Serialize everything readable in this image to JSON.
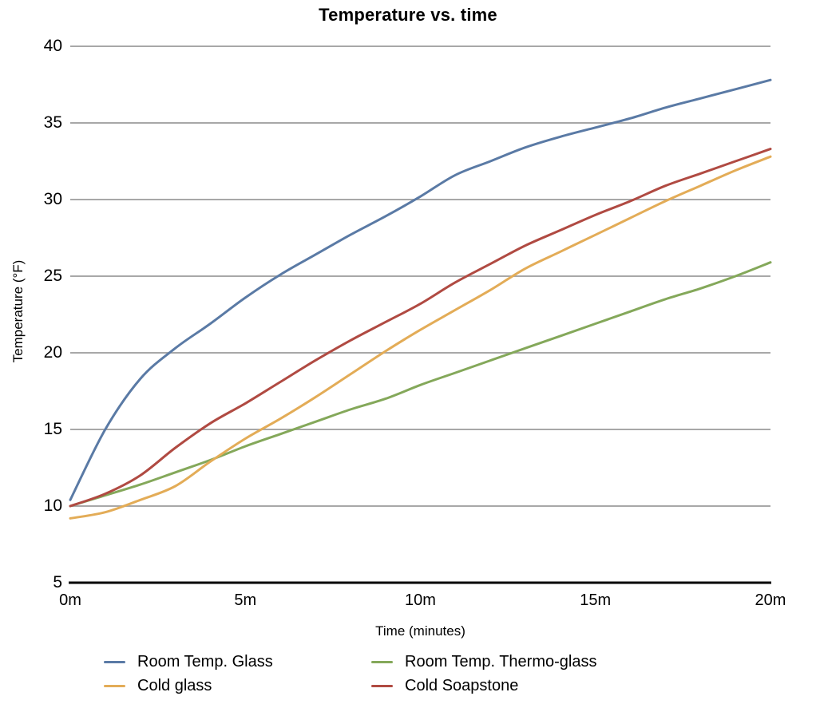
{
  "title": "Temperature vs. time",
  "axes": {
    "x": {
      "label": "Time (minutes)",
      "min": 0,
      "max": 20,
      "ticks": [
        {
          "value": 0,
          "label": "0m"
        },
        {
          "value": 5,
          "label": "5m"
        },
        {
          "value": 10,
          "label": "10m"
        },
        {
          "value": 15,
          "label": "15m"
        },
        {
          "value": 20,
          "label": "20m"
        }
      ]
    },
    "y": {
      "label": "Temperature (°F)",
      "min": 5,
      "max": 40,
      "ticks": [
        {
          "value": 40,
          "label": "40"
        },
        {
          "value": 35,
          "label": "35"
        },
        {
          "value": 30,
          "label": "30"
        },
        {
          "value": 25,
          "label": "25"
        },
        {
          "value": 20,
          "label": "20"
        },
        {
          "value": 15,
          "label": "15"
        },
        {
          "value": 10,
          "label": "10"
        },
        {
          "value": 5,
          "label": "5"
        }
      ]
    }
  },
  "chart_data": {
    "type": "line",
    "title": "Temperature vs. time",
    "xlabel": "Time (minutes)",
    "ylabel": "Temperature (°F)",
    "xlim": [
      0,
      20
    ],
    "ylim": [
      5,
      40
    ],
    "grid": "horizontal",
    "gridline_color": "#a8a8a8",
    "axis_color": "#000000",
    "legend_position": "bottom",
    "x_minutes": [
      0,
      1,
      2,
      3,
      4,
      5,
      6,
      7,
      8,
      9,
      10,
      11,
      12,
      13,
      14,
      15,
      16,
      17,
      18,
      19,
      20
    ],
    "series": [
      {
        "name": "Room Temp. Glass",
        "color": "#5a7aa5",
        "values": [
          10.4,
          15.0,
          18.3,
          20.3,
          21.9,
          23.6,
          25.1,
          26.4,
          27.7,
          28.9,
          30.2,
          31.6,
          32.5,
          33.4,
          34.1,
          34.7,
          35.3,
          36.0,
          36.6,
          37.2,
          37.8
        ]
      },
      {
        "name": "Room Temp. Thermo-glass",
        "color": "#84a85a",
        "values": [
          10.0,
          10.7,
          11.4,
          12.2,
          13.0,
          13.9,
          14.7,
          15.5,
          16.3,
          17.0,
          17.9,
          18.7,
          19.5,
          20.3,
          21.1,
          21.9,
          22.7,
          23.5,
          24.2,
          25.0,
          25.9
        ]
      },
      {
        "name": "Cold glass",
        "color": "#e3ac57",
        "values": [
          9.2,
          9.6,
          10.4,
          11.3,
          12.9,
          14.4,
          15.7,
          17.1,
          18.6,
          20.1,
          21.5,
          22.8,
          24.1,
          25.5,
          26.6,
          27.7,
          28.8,
          29.9,
          30.9,
          31.9,
          32.8
        ]
      },
      {
        "name": "Cold Soapstone",
        "color": "#b04a42",
        "values": [
          10.0,
          10.8,
          12.0,
          13.8,
          15.4,
          16.7,
          18.1,
          19.5,
          20.8,
          22.0,
          23.2,
          24.6,
          25.8,
          27.0,
          28.0,
          29.0,
          29.9,
          30.9,
          31.7,
          32.5,
          33.3
        ]
      }
    ]
  },
  "legend": {
    "items": [
      {
        "label": "Room Temp. Glass"
      },
      {
        "label": "Room Temp. Thermo-glass"
      },
      {
        "label": "Cold glass"
      },
      {
        "label": "Cold Soapstone"
      }
    ]
  }
}
